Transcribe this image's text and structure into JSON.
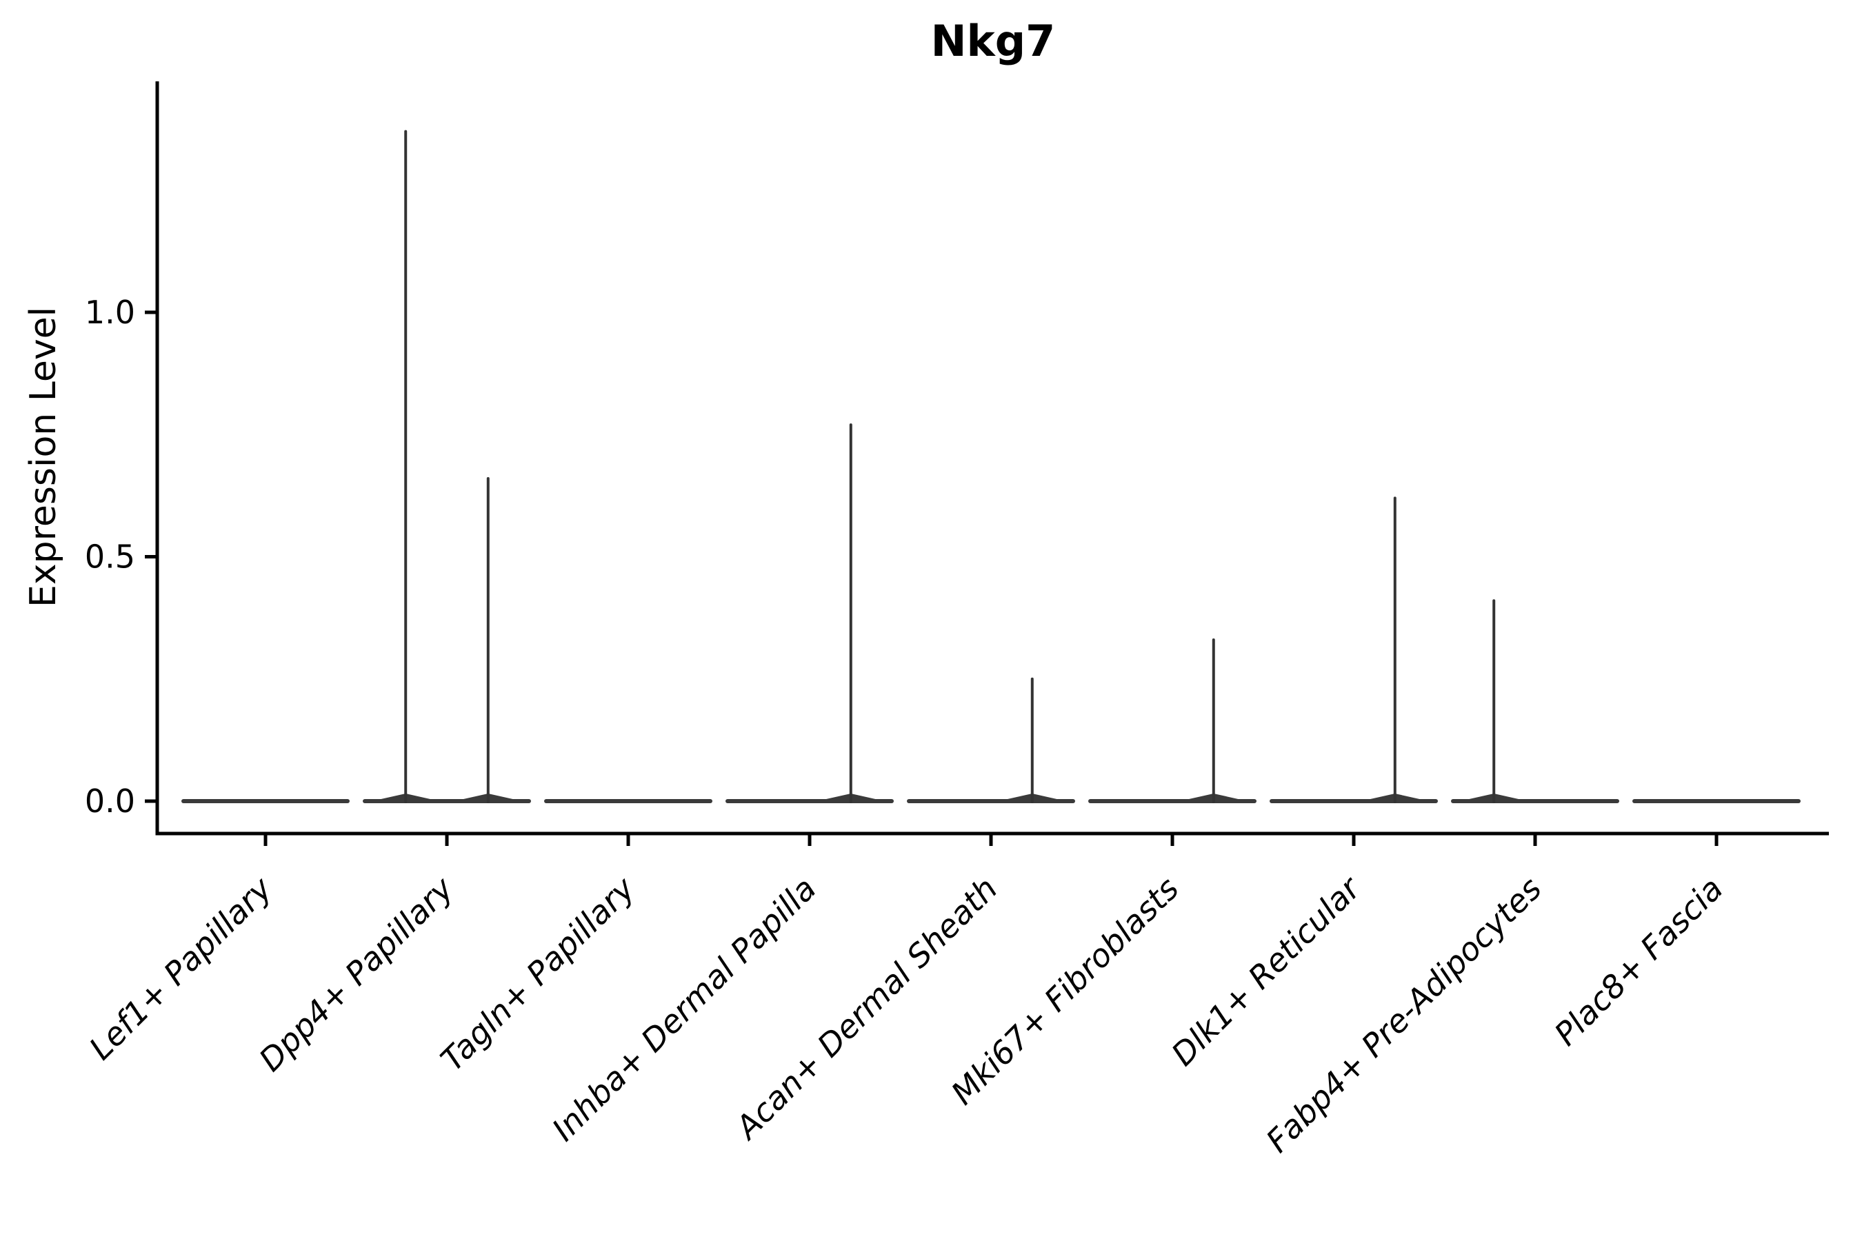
{
  "chart_data": {
    "type": "violin",
    "title": "Nkg7",
    "xlabel": "",
    "ylabel": "Expression Level",
    "ytick_labels": [
      "0.0",
      "0.5",
      "1.0"
    ],
    "ytick_values": [
      0.0,
      0.5,
      1.0
    ],
    "ylim": [
      -0.066,
      1.473
    ],
    "grid": false,
    "x_label_rotation_deg": 45,
    "x_labels_italic": true,
    "categories": [
      "Lef1+ Papillary",
      "Dpp4+ Papillary",
      "Tagln+ Papillary",
      "Inhba+ Dermal Papilla",
      "Acan+ Dermal Sheath",
      "Mki67+ Fibroblasts",
      "Dlk1+ Reticular",
      "Fabp4+ Pre-Adipocytes",
      "Plac8+ Fascia"
    ],
    "violins": [
      {
        "category": "Lef1+ Papillary",
        "body_value": 0.0,
        "spikes": []
      },
      {
        "category": "Dpp4+ Papillary",
        "body_value": 0.0,
        "spikes": [
          {
            "side": -0.49,
            "max": 1.37
          },
          {
            "side": 0.49,
            "max": 0.66
          }
        ]
      },
      {
        "category": "Tagln+ Papillary",
        "body_value": 0.0,
        "spikes": []
      },
      {
        "category": "Inhba+ Dermal Papilla",
        "body_value": 0.0,
        "spikes": [
          {
            "side": 0.49,
            "max": 0.77
          }
        ]
      },
      {
        "category": "Acan+ Dermal Sheath",
        "body_value": 0.0,
        "spikes": [
          {
            "side": 0.49,
            "max": 0.25
          }
        ]
      },
      {
        "category": "Mki67+ Fibroblasts",
        "body_value": 0.0,
        "spikes": [
          {
            "side": 0.49,
            "max": 0.33
          }
        ]
      },
      {
        "category": "Dlk1+ Reticular",
        "body_value": 0.0,
        "spikes": [
          {
            "side": 0.49,
            "max": 0.62
          }
        ]
      },
      {
        "category": "Fabp4+ Pre-Adipocytes",
        "body_value": 0.0,
        "spikes": [
          {
            "side": -0.49,
            "max": 0.41
          }
        ]
      },
      {
        "category": "Plac8+ Fascia",
        "body_value": 0.0,
        "spikes": []
      }
    ],
    "colors": {
      "background": "#ffffff",
      "axis": "#000000",
      "text": "#000000",
      "violin": "#3a3a3a",
      "spike": "#333333"
    }
  }
}
